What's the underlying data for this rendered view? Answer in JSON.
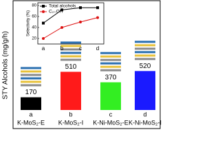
{
  "chart_data": [
    {
      "type": "bar",
      "y_label": "STY Alcohols (mg/g/h)",
      "categories": [
        "K-MoS₂-E",
        "K-MoS₂-I",
        "K-Ni-MoS₂-E",
        "K-Ni-MoS₂-I"
      ],
      "category_letters": [
        "a",
        "b",
        "c",
        "d"
      ],
      "values": [
        170,
        510,
        370,
        520
      ],
      "colors": [
        "#000000",
        "#ff1a1a",
        "#33ee22",
        "#1a1aff"
      ],
      "ylim": [
        0,
        1450
      ]
    },
    {
      "type": "line",
      "y_label": "Selectivity (%)",
      "categories": [
        "a",
        "b",
        "c",
        "d"
      ],
      "series": [
        {
          "name": "Total alcohols",
          "color": "#000000",
          "marker": "square",
          "values": [
            48,
            72,
            76,
            76
          ]
        },
        {
          "name": "C₂₊OH",
          "color": "#dd1111",
          "marker": "circle",
          "values": [
            20,
            40,
            50,
            58
          ]
        }
      ],
      "ylim": [
        10,
        85
      ],
      "yticks": [
        20,
        40,
        60,
        80
      ]
    }
  ]
}
